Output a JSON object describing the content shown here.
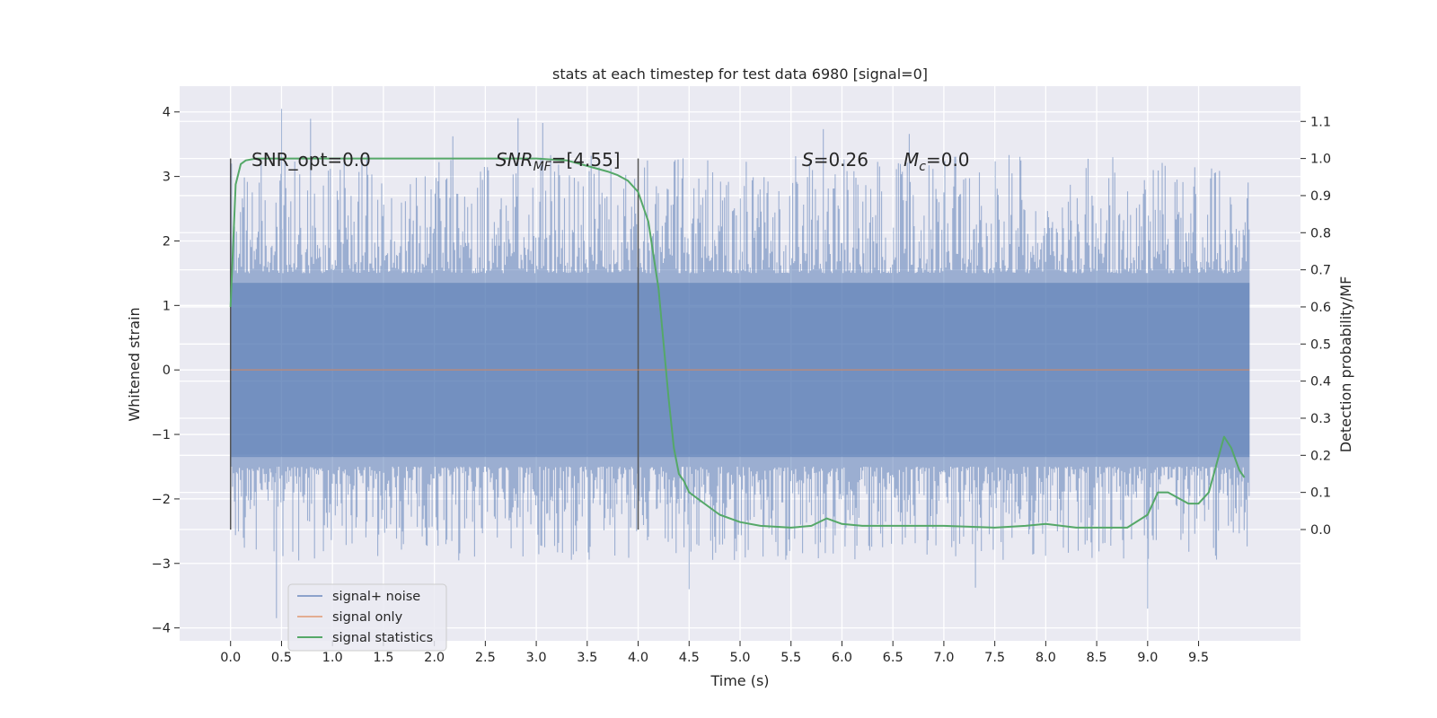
{
  "chart_data": {
    "type": "line",
    "title": "stats at each timestep for test data 6980 [signal=0]",
    "xlabel": "Time (s)",
    "ylabel_left": "Whitened strain",
    "ylabel_right": "Detection probability/MF",
    "xlim": [
      -0.5,
      10.5
    ],
    "ylim_left": [
      -4.2,
      4.4
    ],
    "ylim_right": [
      -0.3,
      1.195
    ],
    "x_ticks": [
      "0.0",
      "0.5",
      "1.0",
      "1.5",
      "2.0",
      "2.5",
      "3.0",
      "3.5",
      "4.0",
      "4.5",
      "5.0",
      "5.5",
      "6.0",
      "6.5",
      "7.0",
      "7.5",
      "8.0",
      "8.5",
      "9.0",
      "9.5"
    ],
    "y_ticks_left": [
      "4",
      "3",
      "2",
      "1",
      "0",
      "−1",
      "−2",
      "−3",
      "−4"
    ],
    "y_ticks_right": [
      "1.1",
      "1.0",
      "0.9",
      "0.8",
      "0.7",
      "0.6",
      "0.5",
      "0.4",
      "0.3",
      "0.2",
      "0.1",
      "0.0"
    ],
    "grid": true,
    "legend_position": "lower-left",
    "annotations": {
      "snr_opt": "SNR_opt=0.0",
      "snr_mf_base": "SNR",
      "snr_mf_sub": "MF",
      "snr_mf_val": "=[4.55]",
      "s_var": "S",
      "s_val": "=0.26",
      "mc_var": "M",
      "mc_sub": "c",
      "mc_val": "=0.0"
    },
    "vertical_markers": [
      0.0,
      4.0
    ],
    "series": [
      {
        "name": "signal+ noise",
        "color": "#4c72b0",
        "axis": "left",
        "x_range": [
          0.0,
          10.0
        ],
        "typical_band": [
          -1.5,
          1.5
        ],
        "spike_max": 4.05,
        "spike_min": -3.85
      },
      {
        "name": "signal only",
        "color": "#dd8452",
        "axis": "left",
        "x": [
          0.0,
          10.0
        ],
        "y": [
          0.0,
          0.0
        ]
      },
      {
        "name": "signal statistics",
        "color": "#55a868",
        "axis": "right",
        "x": [
          0.0,
          0.05,
          0.1,
          0.15,
          0.25,
          0.5,
          1.0,
          2.0,
          3.0,
          3.3,
          3.5,
          3.7,
          3.8,
          3.9,
          4.0,
          4.1,
          4.2,
          4.25,
          4.3,
          4.35,
          4.4,
          4.45,
          4.5,
          4.6,
          4.8,
          5.0,
          5.2,
          5.5,
          5.7,
          5.85,
          6.0,
          6.2,
          6.5,
          7.0,
          7.5,
          7.8,
          8.0,
          8.3,
          8.8,
          9.0,
          9.1,
          9.2,
          9.4,
          9.5,
          9.6,
          9.7,
          9.75,
          9.82,
          9.9,
          9.95
        ],
        "y": [
          0.6,
          0.93,
          0.985,
          0.995,
          1.0,
          1.0,
          1.0,
          1.0,
          1.0,
          0.995,
          0.98,
          0.965,
          0.955,
          0.94,
          0.91,
          0.83,
          0.65,
          0.5,
          0.35,
          0.22,
          0.15,
          0.13,
          0.1,
          0.08,
          0.04,
          0.02,
          0.01,
          0.005,
          0.01,
          0.03,
          0.015,
          0.01,
          0.01,
          0.01,
          0.005,
          0.01,
          0.015,
          0.005,
          0.005,
          0.04,
          0.1,
          0.1,
          0.07,
          0.07,
          0.1,
          0.2,
          0.25,
          0.22,
          0.16,
          0.14
        ]
      }
    ]
  }
}
